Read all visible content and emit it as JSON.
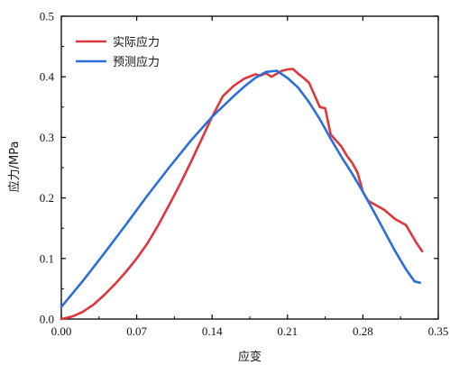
{
  "chart_data": {
    "type": "line",
    "xlabel": "应变",
    "ylabel": "应力/MPa",
    "xlim": [
      0.0,
      0.35
    ],
    "ylim": [
      0.0,
      0.5
    ],
    "x_ticks": [
      "0.00",
      "0.07",
      "0.14",
      "0.21",
      "0.28",
      "0.35"
    ],
    "y_ticks": [
      "0.0",
      "0.1",
      "0.2",
      "0.3",
      "0.4",
      "0.5"
    ],
    "grid": false,
    "legend_position": "top-left",
    "series": [
      {
        "name": "实际应力",
        "color": "#e0353b",
        "points": [
          [
            0.0,
            0.0
          ],
          [
            0.01,
            0.004
          ],
          [
            0.02,
            0.012
          ],
          [
            0.03,
            0.024
          ],
          [
            0.04,
            0.04
          ],
          [
            0.05,
            0.058
          ],
          [
            0.06,
            0.078
          ],
          [
            0.07,
            0.1
          ],
          [
            0.08,
            0.125
          ],
          [
            0.09,
            0.155
          ],
          [
            0.1,
            0.188
          ],
          [
            0.11,
            0.222
          ],
          [
            0.12,
            0.258
          ],
          [
            0.13,
            0.296
          ],
          [
            0.14,
            0.334
          ],
          [
            0.15,
            0.368
          ],
          [
            0.16,
            0.385
          ],
          [
            0.17,
            0.397
          ],
          [
            0.18,
            0.404
          ],
          [
            0.185,
            0.402
          ],
          [
            0.19,
            0.406
          ],
          [
            0.195,
            0.4
          ],
          [
            0.2,
            0.405
          ],
          [
            0.205,
            0.41
          ],
          [
            0.21,
            0.412
          ],
          [
            0.215,
            0.413
          ],
          [
            0.22,
            0.405
          ],
          [
            0.225,
            0.398
          ],
          [
            0.23,
            0.39
          ],
          [
            0.235,
            0.37
          ],
          [
            0.24,
            0.35
          ],
          [
            0.245,
            0.348
          ],
          [
            0.25,
            0.305
          ],
          [
            0.255,
            0.295
          ],
          [
            0.26,
            0.285
          ],
          [
            0.265,
            0.27
          ],
          [
            0.27,
            0.258
          ],
          [
            0.275,
            0.242
          ],
          [
            0.28,
            0.21
          ],
          [
            0.285,
            0.195
          ],
          [
            0.29,
            0.19
          ],
          [
            0.3,
            0.18
          ],
          [
            0.31,
            0.165
          ],
          [
            0.32,
            0.155
          ],
          [
            0.325,
            0.14
          ],
          [
            0.33,
            0.125
          ],
          [
            0.335,
            0.112
          ]
        ]
      },
      {
        "name": "预测应力",
        "color": "#2a6fdb",
        "points": [
          [
            0.0,
            0.02
          ],
          [
            0.02,
            0.063
          ],
          [
            0.04,
            0.109
          ],
          [
            0.06,
            0.156
          ],
          [
            0.08,
            0.204
          ],
          [
            0.1,
            0.25
          ],
          [
            0.12,
            0.294
          ],
          [
            0.14,
            0.334
          ],
          [
            0.16,
            0.368
          ],
          [
            0.17,
            0.384
          ],
          [
            0.18,
            0.398
          ],
          [
            0.19,
            0.408
          ],
          [
            0.2,
            0.41
          ],
          [
            0.21,
            0.398
          ],
          [
            0.22,
            0.382
          ],
          [
            0.23,
            0.358
          ],
          [
            0.24,
            0.33
          ],
          [
            0.25,
            0.298
          ],
          [
            0.26,
            0.268
          ],
          [
            0.27,
            0.24
          ],
          [
            0.28,
            0.21
          ],
          [
            0.29,
            0.178
          ],
          [
            0.3,
            0.145
          ],
          [
            0.31,
            0.112
          ],
          [
            0.32,
            0.082
          ],
          [
            0.328,
            0.062
          ],
          [
            0.333,
            0.06
          ]
        ]
      }
    ]
  }
}
